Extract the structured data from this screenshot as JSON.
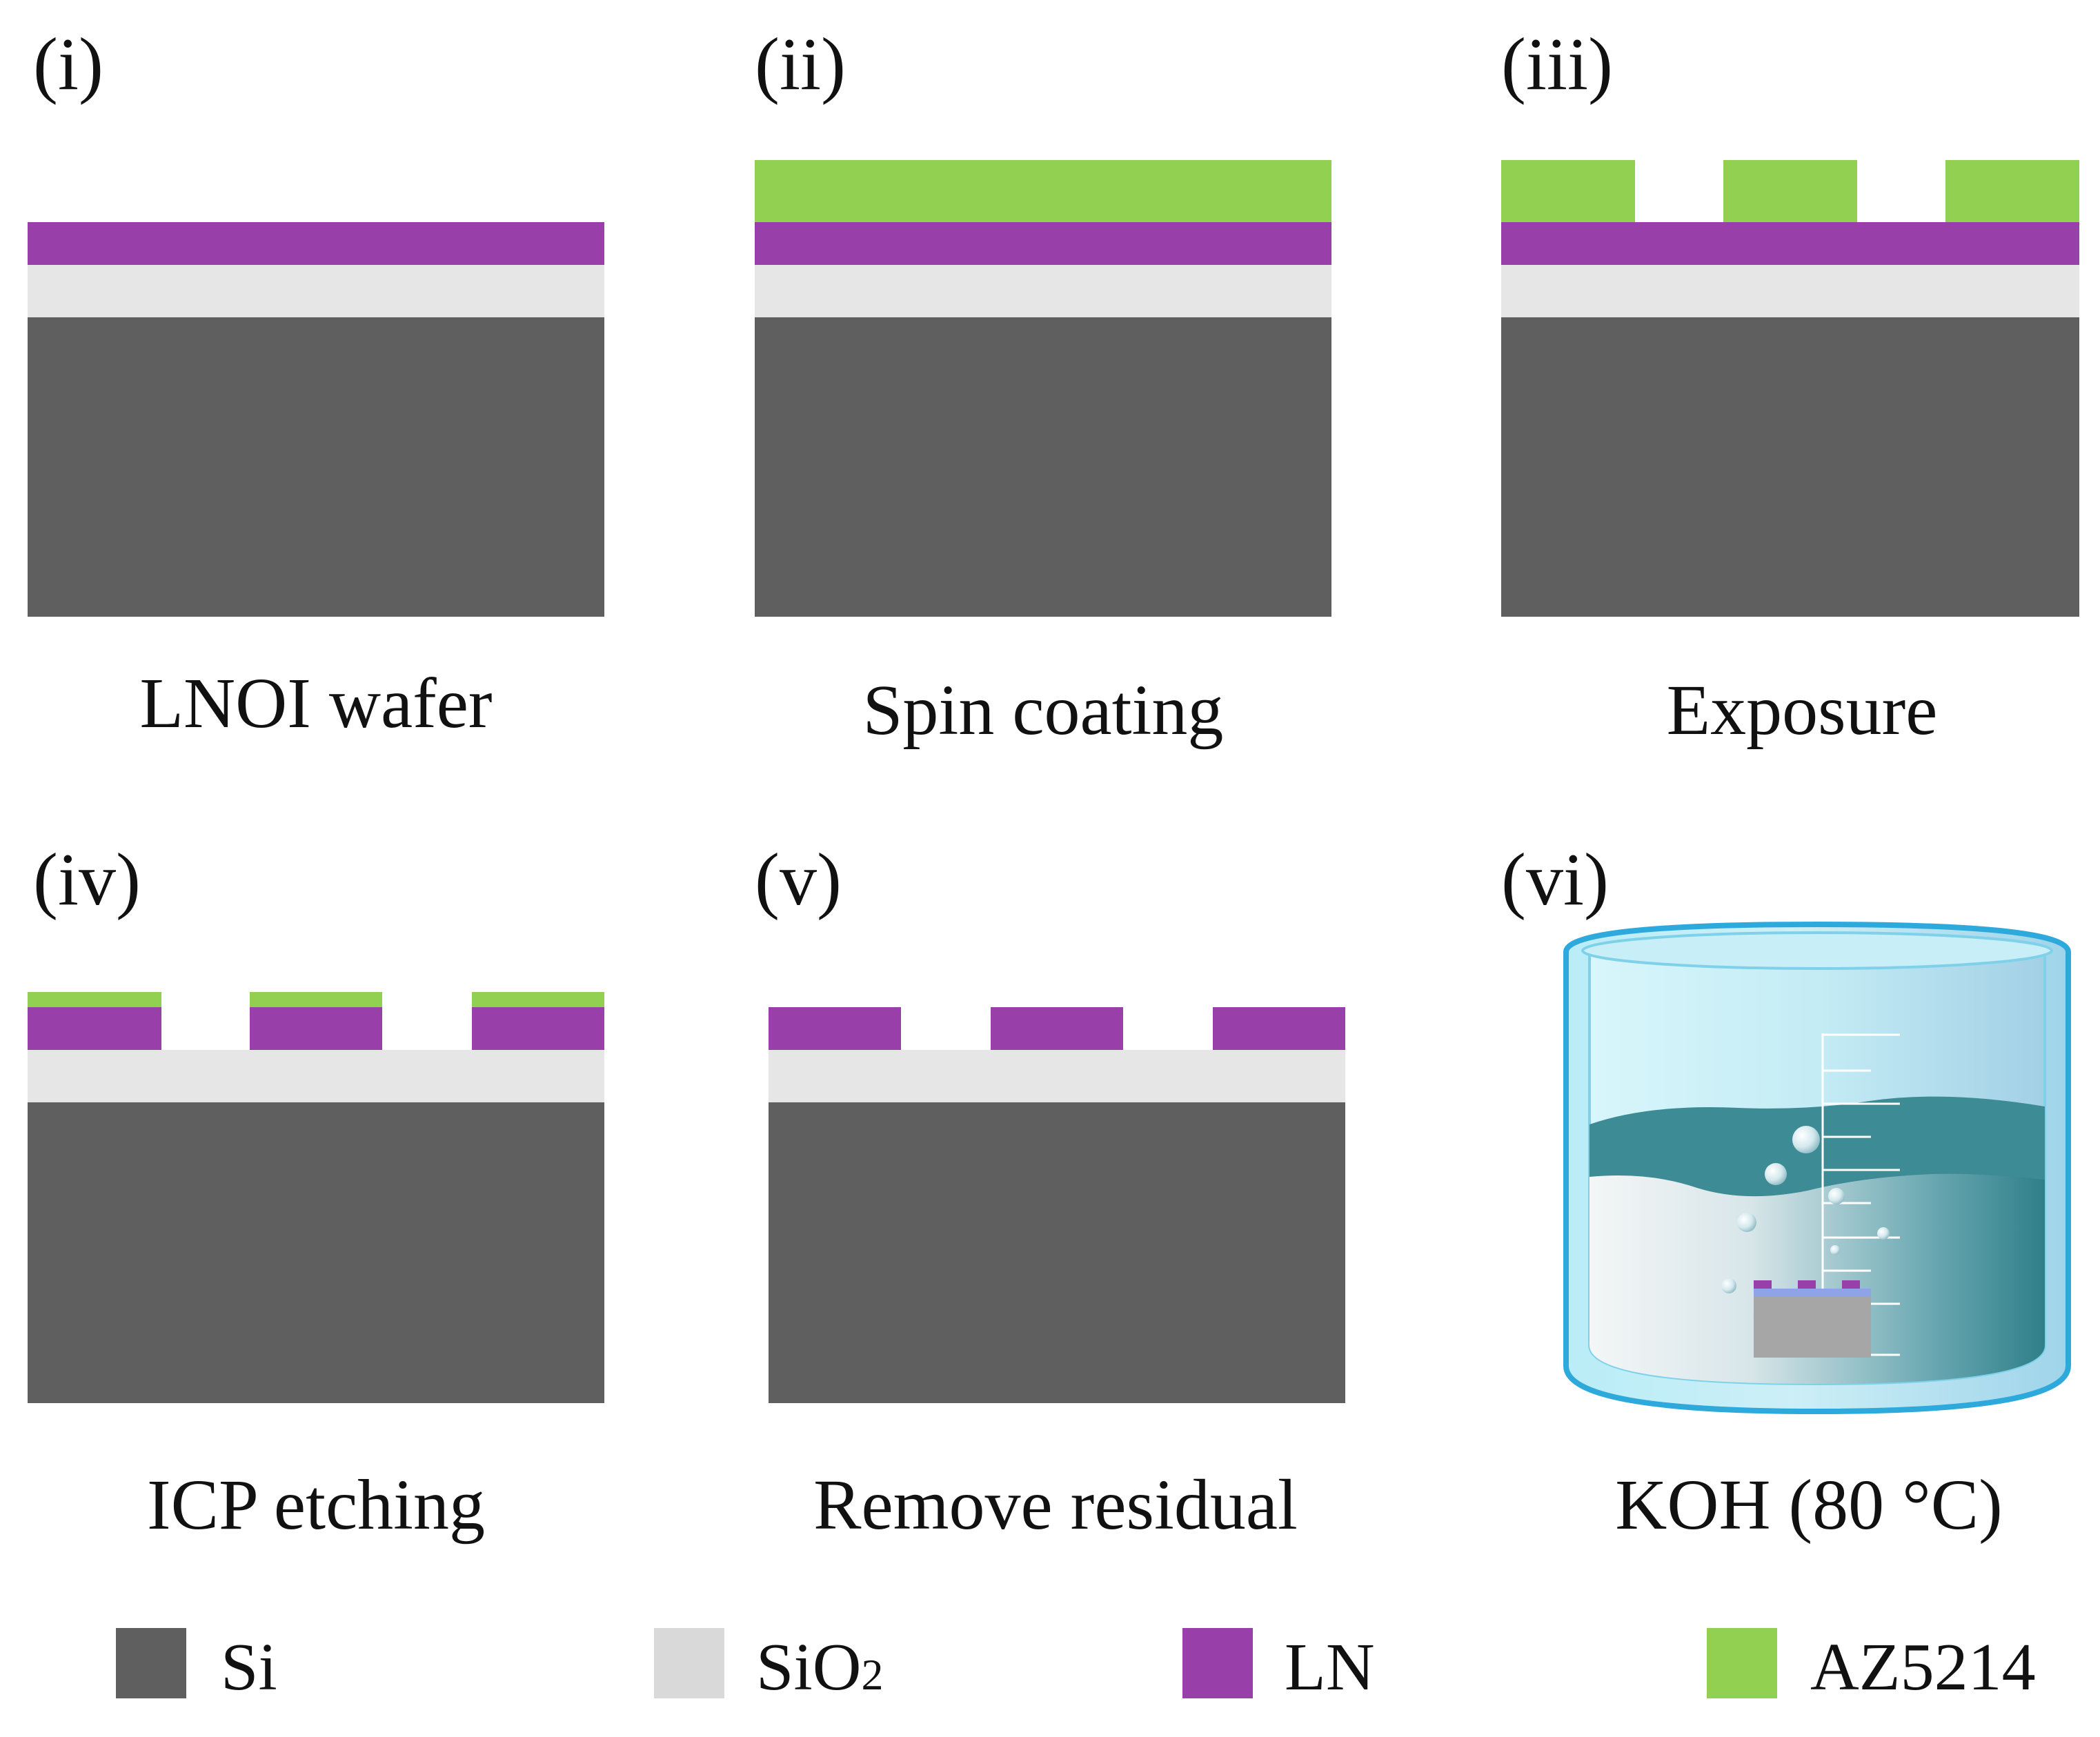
{
  "colors": {
    "si": "#5f5f5f",
    "sio2": "#e6e6e6",
    "ln": "#983fa9",
    "az5214": "#92d051"
  },
  "panels": [
    {
      "label": "(i)",
      "caption": "LNOI wafer"
    },
    {
      "label": "(ii)",
      "caption": "Spin coating"
    },
    {
      "label": "(iii)",
      "caption": "Exposure"
    },
    {
      "label": "(iv)",
      "caption": "ICP etching"
    },
    {
      "label": "(v)",
      "caption": "Remove residual"
    },
    {
      "label": "(vi)",
      "caption": "KOH (80 °C)"
    }
  ],
  "legend": [
    {
      "label": "Si"
    },
    {
      "label": "SiO",
      "subscript": "2"
    },
    {
      "label": "LN"
    },
    {
      "label": "AZ5214"
    }
  ]
}
